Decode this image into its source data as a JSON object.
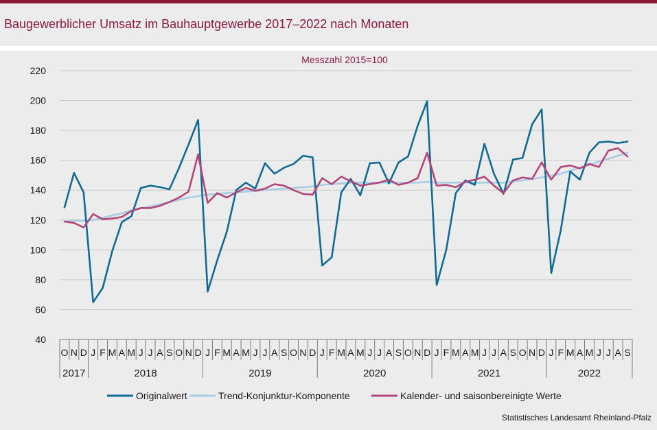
{
  "header": {
    "title": "Baugewerblicher Umsatz im Bauhauptgewerbe 2017–2022 nach Monaten"
  },
  "footer": {
    "source": "Statistisches Landesamt Rheinland-Pfalz"
  },
  "colors": {
    "accent": "#8b1a3a",
    "original": "#0f6b94",
    "trend": "#a6cde3",
    "adjusted": "#b2457a"
  },
  "chart_data": {
    "type": "line",
    "subtitle": "Messzahl 2015=100",
    "ylim": [
      40,
      220
    ],
    "yticks": [
      40,
      60,
      80,
      100,
      120,
      140,
      160,
      180,
      200,
      220
    ],
    "grid": true,
    "legend_position": "bottom",
    "month_labels": [
      "O",
      "N",
      "D",
      "J",
      "F",
      "M",
      "A",
      "M",
      "J",
      "J",
      "A",
      "S",
      "O",
      "N",
      "D",
      "J",
      "F",
      "M",
      "A",
      "M",
      "J",
      "J",
      "A",
      "S",
      "O",
      "N",
      "D",
      "J",
      "F",
      "M",
      "A",
      "M",
      "J",
      "J",
      "A",
      "S",
      "O",
      "N",
      "D",
      "J",
      "F",
      "M",
      "A",
      "M",
      "J",
      "J",
      "A",
      "S",
      "O",
      "N",
      "D",
      "J",
      "F",
      "M",
      "A",
      "M",
      "J",
      "J",
      "A",
      "S"
    ],
    "year_labels": [
      {
        "label": "2017",
        "start": 0,
        "count": 3
      },
      {
        "label": "2018",
        "start": 3,
        "count": 12
      },
      {
        "label": "2019",
        "start": 15,
        "count": 12
      },
      {
        "label": "2020",
        "start": 27,
        "count": 12
      },
      {
        "label": "2021",
        "start": 39,
        "count": 12
      },
      {
        "label": "2022",
        "start": 51,
        "count": 9
      }
    ],
    "series": [
      {
        "name": "Originalwert",
        "values": [
          128.5,
          151.5,
          138.5,
          65,
          74.5,
          99,
          118.5,
          122.5,
          141.5,
          143,
          142,
          140.5,
          155,
          170.5,
          187,
          72,
          93,
          112,
          140,
          145,
          141,
          158,
          151,
          155,
          157.5,
          163,
          162,
          89.5,
          95,
          138.5,
          147.5,
          136.5,
          158,
          158.5,
          144.5,
          158.5,
          162.5,
          183,
          199.5,
          76.5,
          100,
          138,
          146.5,
          143.5,
          171,
          151,
          137.5,
          160.5,
          161.5,
          184,
          194,
          84.5,
          113,
          152.5,
          147,
          165,
          172,
          172.5,
          171.5,
          172.5
        ]
      },
      {
        "name": "Trend-Konjunktur-Komponente",
        "values": [
          119,
          119.5,
          119.5,
          120,
          121.5,
          123,
          124.5,
          126.5,
          128,
          129,
          130.5,
          132,
          133.5,
          135,
          136,
          137,
          137.5,
          138,
          138.5,
          139,
          139.5,
          140,
          140.5,
          141,
          141.5,
          142,
          142.5,
          143.5,
          144,
          144.5,
          145,
          145,
          145,
          145,
          145,
          145,
          145,
          145,
          145.5,
          145,
          145,
          145,
          145,
          145,
          145,
          145,
          145,
          146,
          146.5,
          147.5,
          148.5,
          149.5,
          151,
          153,
          155,
          157,
          159,
          161,
          163,
          165
        ]
      },
      {
        "name": "Kalender- und saisonbereinigte Werte",
        "values": [
          119,
          118,
          115,
          124,
          120.5,
          121,
          122,
          126,
          128,
          128,
          129.5,
          132,
          135,
          139,
          164,
          131.5,
          138,
          135,
          138.5,
          141.5,
          139.5,
          141,
          144,
          143,
          140,
          137.5,
          137,
          148,
          144,
          149,
          146,
          143,
          144,
          145,
          147,
          143.5,
          145,
          148,
          165,
          143,
          143.5,
          142,
          145.5,
          147,
          149,
          143,
          138,
          146.5,
          148.5,
          147.5,
          158.5,
          147,
          155.5,
          156.5,
          154.5,
          157.5,
          155.5,
          166.5,
          168,
          162.5
        ]
      }
    ]
  }
}
